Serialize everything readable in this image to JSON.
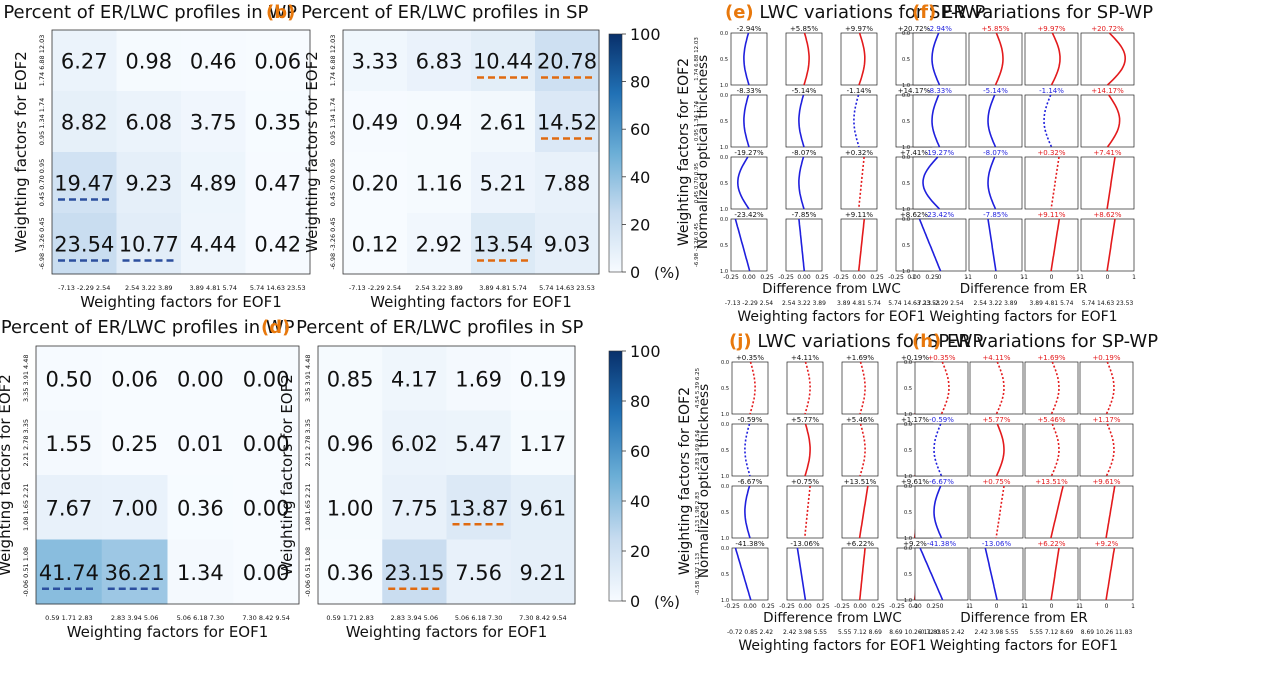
{
  "figure": {
    "colorbar": {
      "ticks": [
        "100",
        "80",
        "60",
        "40",
        "20",
        "0"
      ],
      "unit": "(%)"
    },
    "cmap": {
      "low": "#f7fbff",
      "high": "#08306b"
    },
    "colors": {
      "negative": "#1f1fdd",
      "positive": "#e31a1c",
      "wp_mark": "#2c4f9e",
      "sp_mark": "#e06a10",
      "label_letter": "#e8780c"
    }
  },
  "chart_data": [
    {
      "id": "a",
      "type": "heatmap",
      "letter": "(a)",
      "title": "Percent of ER/LWC profiles in WP",
      "xlabel": "Weighting factors for EOF1",
      "ylabel": "Weighting factors for EOF2",
      "xticks": [
        "-7.13 -2.29 2.54",
        "2.54 3.22 3.89",
        "3.89 4.81 5.74",
        "5.74 14.63 23.53"
      ],
      "yticks": [
        "-6.98 -3.26 0.45",
        "0.45 0.70 0.95",
        "0.95 1.34 1.74",
        "1.74 6.88 12.03"
      ],
      "values": [
        [
          6.27,
          0.98,
          0.46,
          0.06
        ],
        [
          8.82,
          6.08,
          3.75,
          0.35
        ],
        [
          19.47,
          9.23,
          4.89,
          0.47
        ],
        [
          23.54,
          10.77,
          4.44,
          0.42
        ]
      ],
      "labels": [
        [
          "6.27",
          "0.98",
          "0.46",
          "0.06"
        ],
        [
          "8.82",
          "6.08",
          "3.75",
          "0.35"
        ],
        [
          "19.47",
          "9.23",
          "4.89",
          "0.47"
        ],
        [
          "23.54",
          "10.77",
          "4.44",
          "0.42"
        ]
      ],
      "marked": [
        [
          2,
          0
        ],
        [
          3,
          0
        ],
        [
          3,
          1
        ]
      ],
      "mark_color": "wp",
      "zlim": [
        0,
        100
      ]
    },
    {
      "id": "b",
      "type": "heatmap",
      "letter": "(b)",
      "title": "Percent of ER/LWC profiles in SP",
      "xlabel": "Weighting factors for EOF1",
      "ylabel": "Weighting factors for EOF2",
      "xticks": [
        "-7.13 -2.29 2.54",
        "2.54 3.22 3.89",
        "3.89 4.81 5.74",
        "5.74 14.63 23.53"
      ],
      "yticks": [
        "-6.98 -3.26 0.45",
        "0.45 0.70 0.95",
        "0.95 1.34 1.74",
        "1.74 6.88 12.03"
      ],
      "values": [
        [
          3.33,
          6.83,
          10.44,
          20.78
        ],
        [
          0.49,
          0.94,
          2.61,
          14.52
        ],
        [
          0.2,
          1.16,
          5.21,
          7.88
        ],
        [
          0.12,
          2.92,
          13.54,
          9.03
        ]
      ],
      "labels": [
        [
          "3.33",
          "6.83",
          "10.44",
          "20.78"
        ],
        [
          "0.49",
          "0.94",
          "2.61",
          "14.52"
        ],
        [
          "0.20",
          "1.16",
          "5.21",
          "7.88"
        ],
        [
          "0.12",
          "2.92",
          "13.54",
          "9.03"
        ]
      ],
      "marked": [
        [
          0,
          2
        ],
        [
          0,
          3
        ],
        [
          1,
          3
        ],
        [
          3,
          2
        ]
      ],
      "mark_color": "sp",
      "zlim": [
        0,
        100
      ]
    },
    {
      "id": "c",
      "type": "heatmap",
      "letter": "(c)",
      "title": "Percent of ER/LWC profiles in WP",
      "xlabel": "Weighting factors for EOF1",
      "ylabel": "Weighting factors for EOF2",
      "xticks": [
        "0.59 1.71 2.83",
        "2.83 3.94 5.06",
        "5.06 6.18 7.30",
        "7.30 8.42 9.54"
      ],
      "yticks": [
        "-0.06 0.51 1.08",
        "1.08 1.65 2.21",
        "2.21 2.78 3.35",
        "3.35 3.91 4.48"
      ],
      "values": [
        [
          0.5,
          0.06,
          0.0,
          0.0
        ],
        [
          1.55,
          0.25,
          0.01,
          0.0
        ],
        [
          7.67,
          7.0,
          0.36,
          0.0
        ],
        [
          41.74,
          36.21,
          1.34,
          0.0
        ]
      ],
      "labels": [
        [
          "0.50",
          "0.06",
          "0.00",
          "0.00"
        ],
        [
          "1.55",
          "0.25",
          "0.01",
          "0.00"
        ],
        [
          "7.67",
          "7.00",
          "0.36",
          "0.00"
        ],
        [
          "41.74",
          "36.21",
          "1.34",
          "0.00"
        ]
      ],
      "marked": [
        [
          3,
          0
        ],
        [
          3,
          1
        ]
      ],
      "mark_color": "wp",
      "zlim": [
        0,
        100
      ]
    },
    {
      "id": "d",
      "type": "heatmap",
      "letter": "(d)",
      "title": "Percent of ER/LWC profiles in SP",
      "xlabel": "Weighting factors for EOF1",
      "ylabel": "Weighting factors for EOF2",
      "xticks": [
        "0.59 1.71 2.83",
        "2.83 3.94 5.06",
        "5.06 6.18 7.30",
        "7.30 8.42 9.54"
      ],
      "yticks": [
        "-0.06 0.51 1.08",
        "1.08 1.65 2.21",
        "2.21 2.78 3.35",
        "3.35 3.91 4.48"
      ],
      "values": [
        [
          0.85,
          4.17,
          1.69,
          0.19
        ],
        [
          0.96,
          6.02,
          5.47,
          1.17
        ],
        [
          1.0,
          7.75,
          13.87,
          9.61
        ],
        [
          0.36,
          23.15,
          7.56,
          9.21
        ]
      ],
      "labels": [
        [
          "0.85",
          "4.17",
          "1.69",
          "0.19"
        ],
        [
          "0.96",
          "6.02",
          "5.47",
          "1.17"
        ],
        [
          "1.00",
          "7.75",
          "13.87",
          "9.61"
        ],
        [
          "0.36",
          "23.15",
          "7.56",
          "9.21"
        ]
      ],
      "marked": [
        [
          2,
          2
        ],
        [
          3,
          1
        ]
      ],
      "mark_color": "sp",
      "zlim": [
        0,
        100
      ]
    },
    {
      "id": "e",
      "type": "line",
      "letter": "(e)",
      "title": "LWC variations for SP-WP",
      "xlabel": "Difference from LWC",
      "ylabel": "Normalized optical thickness",
      "outer_ylabel": "Weighting factors for EOF2",
      "outer_xlabel": "Weighting factors for EOF1",
      "outer_xticks": [
        "-7.13 -2.29 2.54",
        "2.54 3.22 3.89",
        "3.89 4.81 5.74",
        "5.74 14.63 23.53"
      ],
      "outer_yticks": [
        "-6.98 -3.26 0.45",
        "0.45 0.70 0.95",
        "0.95 1.34 1.74",
        "1.74 6.88 12.03"
      ],
      "sub_xticks": [
        "-0.25",
        "0.00",
        "0.25"
      ],
      "sub_xlim": [
        -0.25,
        0.25
      ],
      "sub_yticks": [
        "0.0",
        "0.5",
        "1.0"
      ],
      "ylim": [
        1.0,
        0.0
      ],
      "pct": [
        [
          "-2.94%",
          "+5.85%",
          "+9.97%",
          "+20.72%"
        ],
        [
          "-8.33%",
          "-5.14%",
          "-1.14%",
          "+14.17%"
        ],
        [
          "-19.27%",
          "-8.07%",
          "+0.32%",
          "+7.41%"
        ],
        [
          "-23.42%",
          "-7.85%",
          "+9.11%",
          "+8.62%"
        ]
      ],
      "colored_labels": false
    },
    {
      "id": "f",
      "type": "line",
      "letter": "(f)",
      "title": "ER variations for SP-WP",
      "xlabel": "Difference from ER",
      "outer_xlabel": "Weighting factors for EOF1",
      "outer_xticks": [
        "-7.13 -2.29 2.54",
        "2.54 3.22 3.89",
        "3.89 4.81 5.74",
        "5.74 14.63 23.53"
      ],
      "sub_xticks": [
        "-1",
        "0",
        "1"
      ],
      "sub_xlim": [
        -1,
        1
      ],
      "sub_yticks": [
        "0.0",
        "0.5",
        "1.0"
      ],
      "ylim": [
        1.0,
        0.0
      ],
      "pct": [
        [
          "-2.94%",
          "+5.85%",
          "+9.97%",
          "+20.72%"
        ],
        [
          "-8.33%",
          "-5.14%",
          "-1.14%",
          "+14.17%"
        ],
        [
          "-19.27%",
          "-8.07%",
          "+0.32%",
          "+7.41%"
        ],
        [
          "-23.42%",
          "-7.85%",
          "+9.11%",
          "+8.62%"
        ]
      ],
      "colored_labels": true
    },
    {
      "id": "j",
      "type": "line",
      "letter": "(j)",
      "title": "LWC variations for SP-WP",
      "xlabel": "Difference from LWC",
      "ylabel": "Normalized optical thickness",
      "outer_ylabel": "Weighting factors for EOF2",
      "outer_xlabel": "Weighting factors for EOF1",
      "outer_xticks": [
        "-0.72 0.85 2.42",
        "2.42 3.98 5.55",
        "5.55 7.12 8.69",
        "8.69 10.26 11.83"
      ],
      "outer_yticks": [
        "-0.58 0.27 1.13",
        "1.13 1.98 2.83",
        "2.83 3.69 4.54",
        "4.54 5.39 6.25"
      ],
      "sub_xticks": [
        "-0.25",
        "0.00",
        "0.25"
      ],
      "sub_xlim": [
        -0.25,
        0.25
      ],
      "sub_yticks": [
        "0.0",
        "0.5",
        "1.0"
      ],
      "ylim": [
        1.0,
        0.0
      ],
      "pct": [
        [
          "+0.35%",
          "+4.11%",
          "+1.69%",
          "+0.19%"
        ],
        [
          "-0.59%",
          "+5.77%",
          "+5.46%",
          "+1.17%"
        ],
        [
          "-6.67%",
          "+0.75%",
          "+13.51%",
          "+9.61%"
        ],
        [
          "-41.38%",
          "-13.06%",
          "+6.22%",
          "+9.2%"
        ]
      ],
      "colored_labels": false
    },
    {
      "id": "h",
      "type": "line",
      "letter": "(h)",
      "title": "ER variations for SP-WP",
      "xlabel": "Difference from ER",
      "outer_xlabel": "Weighting factors for EOF1",
      "outer_xticks": [
        "-0.72 0.85 2.42",
        "2.42 3.98 5.55",
        "5.55 7.12 8.69",
        "8.69 10.26 11.83"
      ],
      "sub_xticks": [
        "-1",
        "0",
        "1"
      ],
      "sub_xlim": [
        -1,
        1
      ],
      "sub_yticks": [
        "0.0",
        "0.5",
        "1.0"
      ],
      "ylim": [
        1.0,
        0.0
      ],
      "pct": [
        [
          "+0.35%",
          "+4.11%",
          "+1.69%",
          "+0.19%"
        ],
        [
          "-0.59%",
          "+5.77%",
          "+5.46%",
          "+1.17%"
        ],
        [
          "-6.67%",
          "+0.75%",
          "+13.51%",
          "+9.61%"
        ],
        [
          "-41.38%",
          "-13.06%",
          "+6.22%",
          "+9.2%"
        ]
      ],
      "colored_labels": true
    }
  ]
}
